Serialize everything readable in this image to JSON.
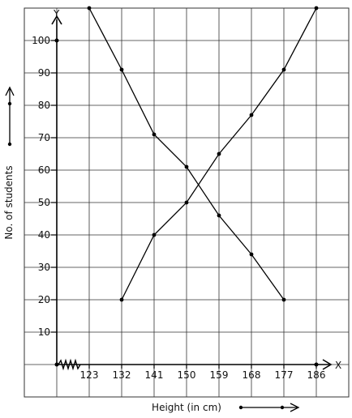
{
  "chart_data": {
    "type": "line",
    "title": "",
    "xlabel": "Height (in cm)",
    "ylabel": "No. of students",
    "x_axis_letter": "X",
    "y_axis_letter": "Y",
    "x_ticks": [
      123,
      132,
      141,
      150,
      159,
      168,
      177,
      186
    ],
    "y_ticks": [
      10,
      20,
      30,
      40,
      50,
      60,
      70,
      80,
      90,
      100
    ],
    "ylim": [
      0,
      110
    ],
    "grid": true,
    "series": [
      {
        "values": [
          [
            123,
            110
          ],
          [
            132,
            91
          ],
          [
            141,
            71
          ],
          [
            150,
            61
          ],
          [
            159,
            46
          ],
          [
            168,
            34
          ],
          [
            177,
            20
          ]
        ]
      },
      {
        "values": [
          [
            132,
            20
          ],
          [
            141,
            40
          ],
          [
            150,
            50
          ],
          [
            159,
            65
          ],
          [
            168,
            77
          ],
          [
            177,
            91
          ],
          [
            186,
            110
          ]
        ]
      }
    ],
    "colors": {
      "line": "#000000",
      "grid": "#333333",
      "background": "#ffffff"
    }
  }
}
